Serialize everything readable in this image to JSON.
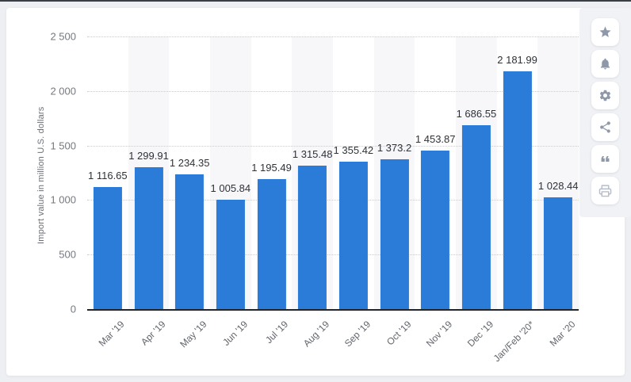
{
  "chart_data": {
    "type": "bar",
    "categories": [
      "Mar '19",
      "Apr '19",
      "May '19",
      "Jun '19",
      "Jul '19",
      "Aug '19",
      "Sep '19",
      "Oct '19",
      "Nov '19",
      "Dec '19",
      "Jan/Feb '20*",
      "Mar '20"
    ],
    "values": [
      1116.65,
      1299.91,
      1234.35,
      1005.84,
      1195.49,
      1315.48,
      1355.42,
      1373.2,
      1453.87,
      1686.55,
      2181.99,
      1028.44
    ],
    "value_labels": [
      "1 116.65",
      "1 299.91",
      "1 234.35",
      "1 005.84",
      "1 195.49",
      "1 315.48",
      "1 355.42",
      "1 373.2",
      "1 453.87",
      "1 686.55",
      "2 181.99",
      "1 028.44"
    ],
    "title": "",
    "xlabel": "",
    "ylabel": "Import value in million U.S. dollars",
    "ylim": [
      0,
      2500
    ],
    "yticks": [
      {
        "value": 2500,
        "label": "2 500"
      },
      {
        "value": 2000,
        "label": "2 000"
      },
      {
        "value": 1500,
        "label": "1 500"
      },
      {
        "value": 1000,
        "label": "1 000"
      },
      {
        "value": 500,
        "label": "500"
      },
      {
        "value": 0,
        "label": "0"
      }
    ],
    "grid": "horizontal-dotted",
    "legend": "none",
    "bar_color": "#2b7bd9",
    "band_color": "#f7f7fa"
  },
  "toolbar": {
    "buttons": [
      {
        "name": "favorite-button",
        "icon": "star-icon"
      },
      {
        "name": "notification-button",
        "icon": "bell-icon"
      },
      {
        "name": "settings-button",
        "icon": "gear-icon"
      },
      {
        "name": "share-button",
        "icon": "share-icon"
      },
      {
        "name": "cite-button",
        "icon": "quote-icon"
      },
      {
        "name": "print-button",
        "icon": "print-icon"
      }
    ],
    "icon_color": "#8e98a9",
    "print_icon_color": "#b6bdc9"
  }
}
